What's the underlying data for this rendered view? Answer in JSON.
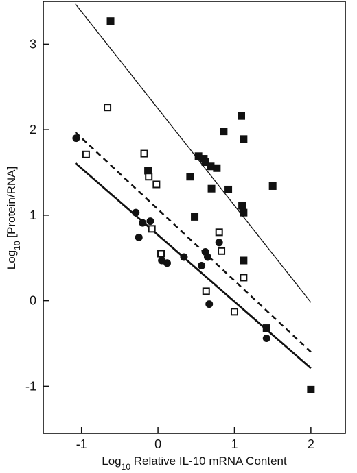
{
  "chart_data": {
    "type": "scatter",
    "title": "",
    "xlabel": "Log10 Relative IL-10 mRNA Content",
    "ylabel": "Log10 [Protein/RNA]",
    "xlabel_parts": {
      "pre": "Log",
      "sub": "10",
      "post": " Relative IL-10 mRNA Content"
    },
    "ylabel_parts": {
      "pre": "Log",
      "sub": "10",
      "post": " [Protein/RNA]"
    },
    "xlim": [
      -1.5,
      2.45
    ],
    "ylim": [
      -1.55,
      3.5
    ],
    "x_ticks": [
      -1,
      0,
      1,
      2
    ],
    "y_ticks": [
      -1,
      0,
      1,
      2,
      3
    ],
    "x_tick_labels": [
      "-1",
      "0",
      "1",
      "2"
    ],
    "y_tick_labels": [
      "-1",
      "0",
      "1",
      "2",
      "3"
    ],
    "grid": false,
    "color": "#111111",
    "series": [
      {
        "marker": "filled-square",
        "points": [
          [
            -0.62,
            3.27
          ],
          [
            -0.13,
            1.52
          ],
          [
            0.42,
            1.45
          ],
          [
            0.53,
            1.69
          ],
          [
            0.6,
            1.66
          ],
          [
            0.62,
            1.62
          ],
          [
            0.69,
            1.57
          ],
          [
            0.77,
            1.55
          ],
          [
            0.86,
            1.98
          ],
          [
            0.92,
            1.3
          ],
          [
            0.7,
            1.31
          ],
          [
            0.48,
            0.98
          ],
          [
            1.09,
            2.16
          ],
          [
            1.12,
            1.89
          ],
          [
            1.1,
            1.11
          ],
          [
            1.12,
            1.03
          ],
          [
            1.5,
            1.34
          ],
          [
            1.12,
            0.47
          ],
          [
            1.42,
            -0.32
          ],
          [
            2.0,
            -1.04
          ]
        ]
      },
      {
        "marker": "open-square",
        "points": [
          [
            -0.94,
            1.71
          ],
          [
            -0.66,
            2.26
          ],
          [
            -0.18,
            1.72
          ],
          [
            -0.12,
            1.45
          ],
          [
            -0.02,
            1.36
          ],
          [
            -0.08,
            0.84
          ],
          [
            0.04,
            0.55
          ],
          [
            0.8,
            0.8
          ],
          [
            0.83,
            0.58
          ],
          [
            0.63,
            0.11
          ],
          [
            1.0,
            -0.13
          ],
          [
            1.12,
            0.27
          ]
        ]
      },
      {
        "marker": "filled-circle",
        "points": [
          [
            -1.07,
            1.9
          ],
          [
            -0.29,
            1.03
          ],
          [
            -0.25,
            0.74
          ],
          [
            -0.2,
            0.91
          ],
          [
            -0.1,
            0.93
          ],
          [
            0.05,
            0.47
          ],
          [
            0.12,
            0.44
          ],
          [
            0.34,
            0.51
          ],
          [
            0.57,
            0.41
          ],
          [
            0.62,
            0.57
          ],
          [
            0.65,
            0.51
          ],
          [
            0.67,
            -0.04
          ],
          [
            0.8,
            0.68
          ],
          [
            1.42,
            -0.44
          ]
        ]
      }
    ],
    "lines": [
      {
        "style": "thin-solid",
        "x": [
          -1.08,
          2.0
        ],
        "y": [
          3.47,
          -0.02
        ]
      },
      {
        "style": "dashed",
        "x": [
          -1.08,
          2.0
        ],
        "y": [
          1.97,
          -0.6
        ]
      },
      {
        "style": "thick-solid",
        "x": [
          -1.08,
          2.0
        ],
        "y": [
          1.61,
          -0.79
        ]
      }
    ]
  }
}
